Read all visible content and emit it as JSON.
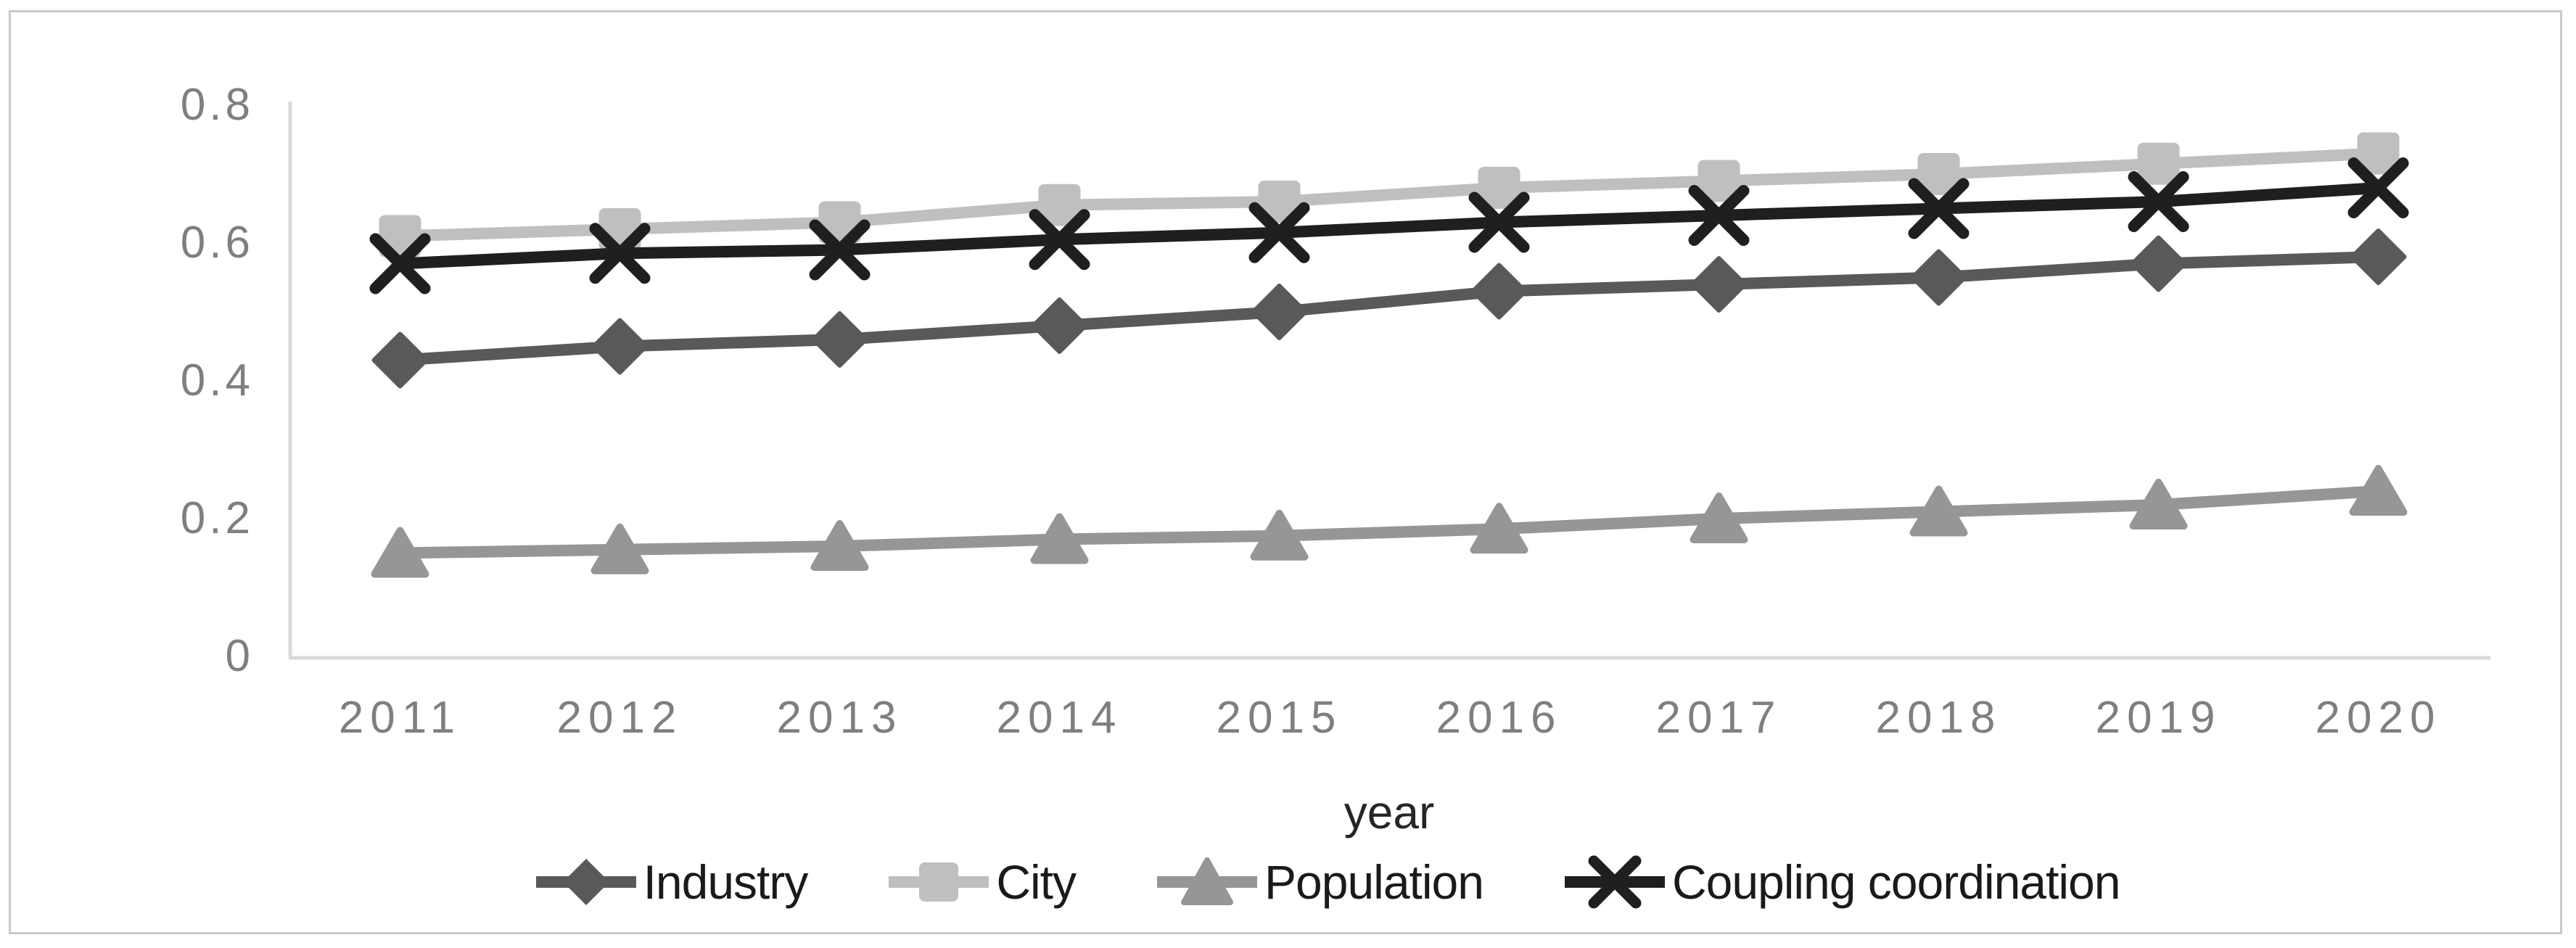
{
  "figure": {
    "xlabel": "year",
    "border_color": "#c8c8c8",
    "axis_line_color": "#d9d9d9",
    "tick_text_color": "#7f7f7f"
  },
  "chart_data": {
    "type": "line",
    "categories": [
      "2011",
      "2012",
      "2013",
      "2014",
      "2015",
      "2016",
      "2017",
      "2018",
      "2019",
      "2020"
    ],
    "series": [
      {
        "name": "Industry",
        "marker": "diamond",
        "color": "#595959",
        "values": [
          0.43,
          0.45,
          0.46,
          0.48,
          0.5,
          0.53,
          0.54,
          0.55,
          0.57,
          0.58
        ]
      },
      {
        "name": "City",
        "marker": "square",
        "color": "#bfbfbf",
        "values": [
          0.61,
          0.62,
          0.63,
          0.655,
          0.66,
          0.68,
          0.69,
          0.7,
          0.715,
          0.73
        ]
      },
      {
        "name": "Population",
        "marker": "triangle",
        "color": "#969696",
        "values": [
          0.15,
          0.155,
          0.16,
          0.17,
          0.175,
          0.185,
          0.2,
          0.21,
          0.22,
          0.24
        ]
      },
      {
        "name": "Coupling coordination",
        "marker": "x",
        "color": "#1f1f1f",
        "values": [
          0.57,
          0.585,
          0.59,
          0.605,
          0.615,
          0.63,
          0.64,
          0.65,
          0.66,
          0.68
        ]
      }
    ],
    "ylim": [
      0,
      0.8
    ],
    "y_ticks": [
      "0",
      "0.2",
      "0.4",
      "0.6",
      "0.8"
    ],
    "y_tick_values": [
      0,
      0.2,
      0.4,
      0.6,
      0.8
    ],
    "xlabel": "year",
    "title": "",
    "grid": false,
    "legend_position": "bottom"
  }
}
